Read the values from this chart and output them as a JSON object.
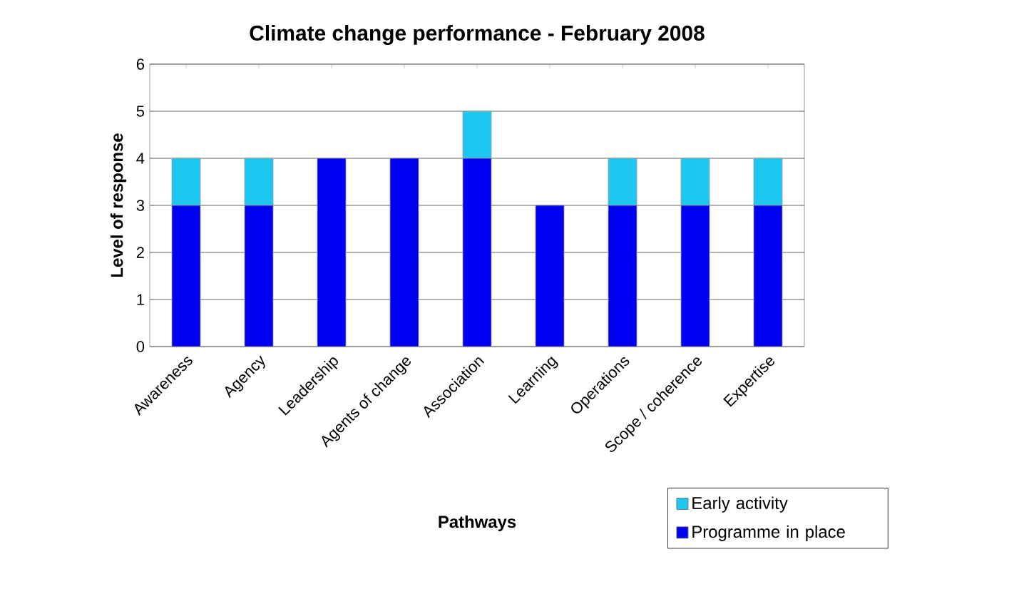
{
  "chart_data": {
    "type": "bar",
    "stacked": true,
    "title": "Climate change performance - February 2008",
    "xlabel": "Pathways",
    "ylabel": "Level of response",
    "categories": [
      "Awareness",
      "Agency",
      "Leadership",
      "Agents of change",
      "Association",
      "Learning",
      "Operations",
      "Scope / coherence",
      "Expertise"
    ],
    "series": [
      {
        "name": "Programme in place",
        "color": "#0000f0",
        "values": [
          3,
          3,
          4,
          4,
          4,
          3,
          3,
          3,
          3
        ]
      },
      {
        "name": "Early activity",
        "color": "#1ec8f0",
        "values": [
          1,
          1,
          0,
          0,
          1,
          0,
          1,
          1,
          1
        ]
      }
    ],
    "ylim": [
      0,
      6
    ],
    "yticks": [
      0,
      1,
      2,
      3,
      4,
      5,
      6
    ],
    "grid": "y",
    "legend": "bottom right"
  }
}
